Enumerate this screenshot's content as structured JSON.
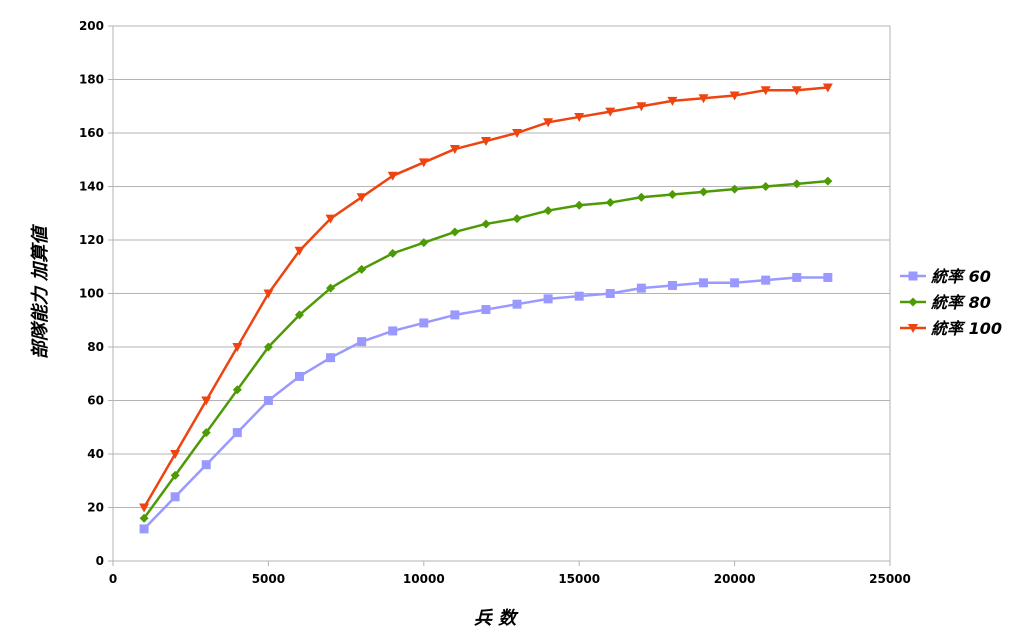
{
  "chart_data": {
    "type": "line",
    "title": "",
    "xlabel": "兵 数",
    "ylabel": "部隊能力 加算値",
    "xlim": [
      0,
      25000
    ],
    "ylim": [
      0,
      200
    ],
    "x_ticks": [
      0,
      5000,
      10000,
      15000,
      20000,
      25000
    ],
    "y_ticks": [
      0,
      20,
      40,
      60,
      80,
      100,
      120,
      140,
      160,
      180,
      200
    ],
    "grid": "horizontal",
    "legend_position": "right",
    "x": [
      1000,
      2000,
      3000,
      4000,
      5000,
      6000,
      7000,
      8000,
      9000,
      10000,
      11000,
      12000,
      13000,
      14000,
      15000,
      16000,
      17000,
      18000,
      19000,
      20000,
      21000,
      22000,
      23000
    ],
    "series": [
      {
        "name": "統率 60",
        "color": "#9999ff",
        "marker": "square",
        "values": [
          12,
          24,
          36,
          48,
          60,
          69,
          76,
          82,
          86,
          89,
          92,
          94,
          96,
          98,
          99,
          100,
          102,
          103,
          104,
          104,
          105,
          106,
          106
        ]
      },
      {
        "name": "統率 80",
        "color": "#4e9a06",
        "marker": "diamond",
        "values": [
          16,
          32,
          48,
          64,
          80,
          92,
          102,
          109,
          115,
          119,
          123,
          126,
          128,
          131,
          133,
          134,
          136,
          137,
          138,
          139,
          140,
          141,
          142
        ]
      },
      {
        "name": "統率 100",
        "color": "#ee4411",
        "marker": "triangle-down",
        "values": [
          20,
          40,
          60,
          80,
          100,
          116,
          128,
          136,
          144,
          149,
          154,
          157,
          160,
          164,
          166,
          168,
          170,
          172,
          173,
          174,
          176,
          176,
          177
        ]
      }
    ]
  }
}
